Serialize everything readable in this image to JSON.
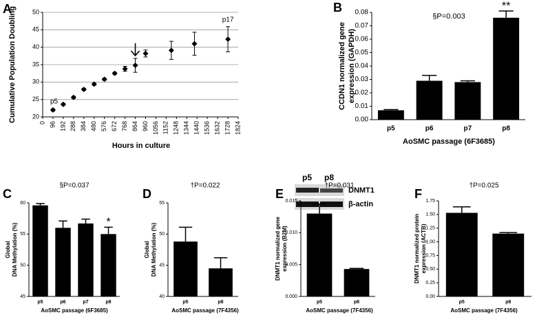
{
  "chart_data": [
    {
      "type": "scatter",
      "panel": "A",
      "ylabel": [
        "Cumulative Population Doubling"
      ],
      "xlabel": "Hours in culture",
      "x": [
        96,
        192,
        288,
        384,
        480,
        576,
        672,
        768,
        864,
        960,
        1200,
        1416,
        1728
      ],
      "values": [
        22,
        23.6,
        25.6,
        27.9,
        29.4,
        30.8,
        32.5,
        33.8,
        34.8,
        38.2,
        39.1,
        41,
        42.3
      ],
      "errors": [
        0.3,
        0.3,
        0.3,
        0.3,
        0.3,
        0.3,
        0.3,
        0.7,
        2,
        1,
        2.6,
        3.3,
        3.6
      ],
      "annotations": [
        "p5",
        "p17"
      ],
      "color": "#000000",
      "xlim": [
        0,
        1824
      ],
      "xticks": [
        0,
        96,
        192,
        288,
        384,
        480,
        576,
        672,
        768,
        864,
        960,
        1056,
        1152,
        1248,
        1344,
        1440,
        1536,
        1632,
        1728,
        1824
      ],
      "ylim": [
        20,
        50
      ],
      "yticks": [
        20,
        25,
        30,
        35,
        40,
        45,
        50
      ],
      "grid": true
    },
    {
      "type": "bar",
      "panel": "B",
      "title": "§P=0.003",
      "ylabel": [
        "CCDN1 normalized gene",
        "expression (GAPDH)"
      ],
      "xlabel": "AoSMC passage (6F3685)",
      "categories": [
        "p5",
        "p6",
        "p7",
        "p8"
      ],
      "values": [
        0.007,
        0.029,
        0.028,
        0.076
      ],
      "errors": [
        0.0005,
        0.004,
        0.001,
        0.005
      ],
      "significance": [
        null,
        null,
        null,
        "**"
      ],
      "color": "#000000",
      "ylim": [
        0,
        0.08
      ],
      "yticks": [
        {
          "value": 0,
          "label": "0.00"
        },
        {
          "value": 0.01,
          "label": "0.01"
        },
        {
          "value": 0.02,
          "label": "0.02"
        },
        {
          "value": 0.03,
          "label": "0.03"
        },
        {
          "value": 0.04,
          "label": "0.04"
        },
        {
          "value": 0.05,
          "label": "0.05"
        },
        {
          "value": 0.06,
          "label": "0.06"
        },
        {
          "value": 0.07,
          "label": "0.07"
        },
        {
          "value": 0.08,
          "label": "0.08"
        }
      ]
    },
    {
      "type": "bar",
      "panel": "C",
      "title": "§P=0.037",
      "ylabel": [
        "Global",
        "DNA Methylation (%)"
      ],
      "xlabel": "AoSMC passage (6F3685)",
      "categories": [
        "p5",
        "p6",
        "p7",
        "p8"
      ],
      "values": [
        59.6,
        56,
        56.7,
        55
      ],
      "errors": [
        0.3,
        1.1,
        0.7,
        1.1
      ],
      "significance": [
        null,
        null,
        null,
        "*"
      ],
      "color": "#000000",
      "ylim": [
        45,
        60
      ],
      "yticks": [
        45,
        50,
        55,
        60
      ]
    },
    {
      "type": "bar",
      "panel": "D",
      "title": "†P=0.022",
      "ylabel": [
        "Global",
        "DNA Methylation (%)"
      ],
      "xlabel": "AoSMC passage (7F4356)",
      "categories": [
        "p5",
        "p8"
      ],
      "values": [
        48.8,
        44.5
      ],
      "errors": [
        2.3,
        1.7
      ],
      "color": "#000000",
      "ylim": [
        40,
        55
      ],
      "yticks": [
        40,
        45,
        50,
        55
      ]
    },
    {
      "type": "bar",
      "panel": "E",
      "title": "†P=0.031",
      "ylabel": [
        "DNMT1 normalized gene",
        "expression (B2M)"
      ],
      "xlabel": "AoSMC passage (7F4356)",
      "categories": [
        "p5",
        "p8"
      ],
      "values": [
        0.013,
        0.0043
      ],
      "errors": [
        0.0015,
        0.0001
      ],
      "color": "#000000",
      "ylim": [
        0,
        0.015
      ],
      "yticks": [
        {
          "value": 0,
          "label": "0.000"
        },
        {
          "value": 0.005,
          "label": "0.005"
        },
        {
          "value": 0.01,
          "label": "0.010"
        },
        {
          "value": 0.015,
          "label": "0.015"
        }
      ]
    },
    {
      "type": "bar",
      "panel": "F",
      "title": "†P=0.025",
      "ylabel": [
        "DNMT1 normalized protein",
        "expression (ACTB)"
      ],
      "xlabel": "AoSMC passage (7F4356)",
      "categories": [
        "p5",
        "p8"
      ],
      "values": [
        1.53,
        1.15
      ],
      "errors": [
        0.11,
        0.02
      ],
      "color": "#000000",
      "ylim": [
        0,
        1.75
      ],
      "yticks": [
        {
          "value": 0,
          "label": "0.00"
        },
        {
          "value": 0.25,
          "label": "0.25"
        },
        {
          "value": 0.5,
          "label": "0.50"
        },
        {
          "value": 0.75,
          "label": "0.75"
        },
        {
          "value": 1,
          "label": "1.00"
        },
        {
          "value": 1.25,
          "label": "1.25"
        },
        {
          "value": 1.5,
          "label": "1.50"
        },
        {
          "value": 1.75,
          "label": "1.75"
        }
      ]
    }
  ],
  "blot": {
    "lanes": [
      "p5",
      "p8"
    ],
    "rows": [
      "DNMT1",
      "β-actin"
    ]
  }
}
